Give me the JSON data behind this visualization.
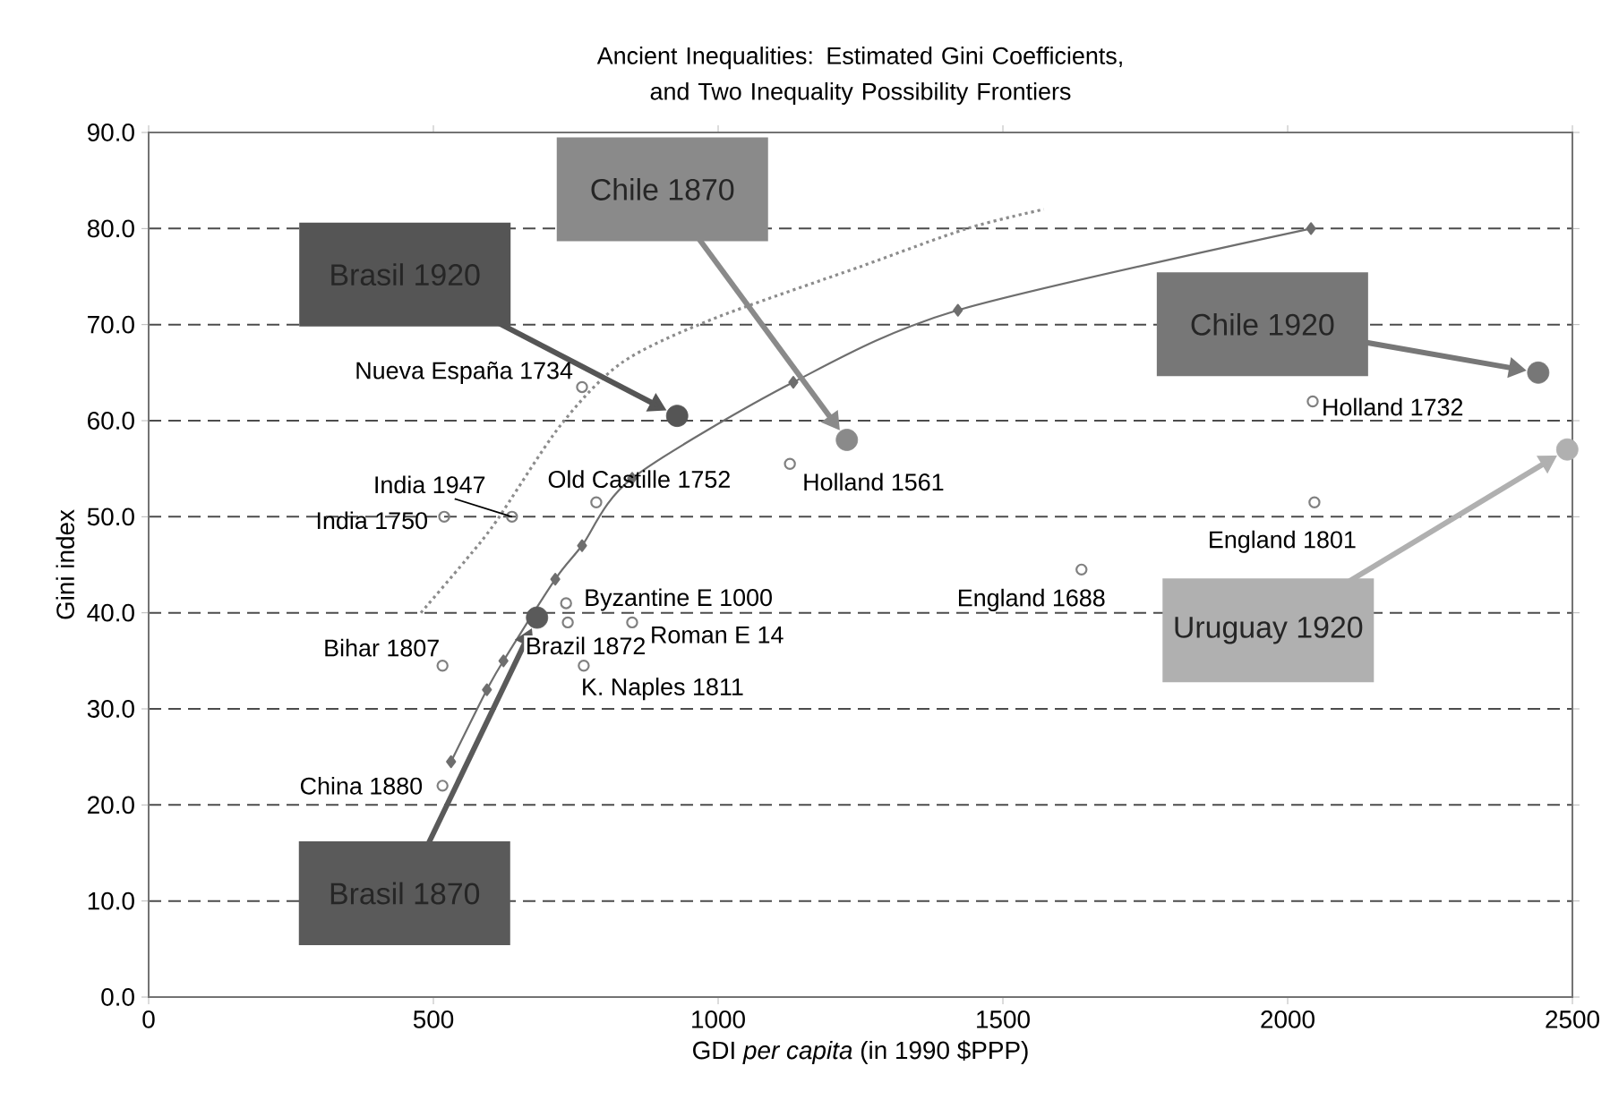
{
  "chart_data": {
    "type": "scatter",
    "title": "Ancient Inequalities: Estimated Gini Coefficients, and Two Inequality Possibility Frontiers",
    "xlabel": "GDI *per capita* (in 1990 $PPP)",
    "ylabel": "Gini index",
    "xlim": [
      0,
      2500
    ],
    "xticks": [
      0,
      500,
      1000,
      1500,
      2000,
      2500
    ],
    "ylim": [
      0,
      90
    ],
    "yticks": [
      {
        "value": 0,
        "label": "0.0"
      },
      {
        "value": 10,
        "label": "10.0"
      },
      {
        "value": 20,
        "label": "20.0"
      },
      {
        "value": 30,
        "label": "30.0"
      },
      {
        "value": 40,
        "label": "40.0"
      },
      {
        "value": 50,
        "label": "50.0"
      },
      {
        "value": 60,
        "label": "60.0"
      },
      {
        "value": 70,
        "label": "70.0"
      },
      {
        "value": 80,
        "label": "80.0"
      },
      {
        "value": 90,
        "label": "90.0"
      }
    ],
    "grid": "y",
    "series": [
      {
        "type": "scatter",
        "marker": "circle",
        "color": "#808080",
        "x": [
          761,
          786,
          638,
          519,
          1126,
          733,
          736,
          849,
          764,
          516,
          516,
          1638,
          2047,
          2044
        ],
        "values": [
          63.5,
          51.5,
          50,
          50,
          55.5,
          41,
          39,
          39,
          34.5,
          34.5,
          22,
          44.5,
          51.5,
          62
        ]
      },
      {
        "type": "scatter",
        "marker": "circle",
        "colors": [
          "#555555",
          "#8a8a8a",
          "#777777",
          "#b0b0b0",
          "#5a5a5a"
        ],
        "x": [
          928,
          1226,
          2440,
          2491,
          682
        ],
        "values": [
          60.5,
          58,
          65,
          57,
          39.5
        ]
      },
      {
        "type": "line",
        "marker": "diamond",
        "line_style": "solid",
        "color": "#6e6e6e",
        "x": [
          531,
          594,
          623,
          714,
          761,
          849,
          1132,
          1421,
          2041
        ],
        "values": [
          24.5,
          32,
          35,
          43.5,
          47,
          54,
          64,
          71.5,
          80
        ]
      },
      {
        "type": "line",
        "marker": "none",
        "line_style": "dotted",
        "color": "#8c8c8c",
        "x": [
          478,
          557,
          610,
          723,
          830,
          987,
          1248,
          1437,
          1572
        ],
        "values": [
          40,
          45.5,
          49.5,
          59.5,
          66,
          70.5,
          76,
          80,
          82
        ]
      }
    ],
    "annotations": [
      {
        "text": "Nueva España 1734",
        "x": 761,
        "y": 63.5
      },
      {
        "text": "Old Castille 1752",
        "x": 786,
        "y": 51.5
      },
      {
        "text": "India 1947",
        "x": 638,
        "y": 50
      },
      {
        "text": "India 1750",
        "x": 519,
        "y": 50
      },
      {
        "text": "Holland 1561",
        "x": 1126,
        "y": 55.5
      },
      {
        "text": "Byzantine E 1000",
        "x": 733,
        "y": 41
      },
      {
        "text": "Brazil 1872",
        "x": 736,
        "y": 39
      },
      {
        "text": "Roman E 14",
        "x": 849,
        "y": 39
      },
      {
        "text": "K. Naples 1811",
        "x": 764,
        "y": 34.5
      },
      {
        "text": "Bihar 1807",
        "x": 516,
        "y": 34.5
      },
      {
        "text": "China 1880",
        "x": 516,
        "y": 22
      },
      {
        "text": "England 1688",
        "x": 1638,
        "y": 44.5
      },
      {
        "text": "England 1801",
        "x": 2047,
        "y": 51.5
      },
      {
        "text": "Holland 1732",
        "x": 2044,
        "y": 62
      },
      "Brasil 1920",
      "Chile 1870",
      "Chile 1920",
      "Uruguay 1920",
      "Brasil 1870"
    ]
  }
}
